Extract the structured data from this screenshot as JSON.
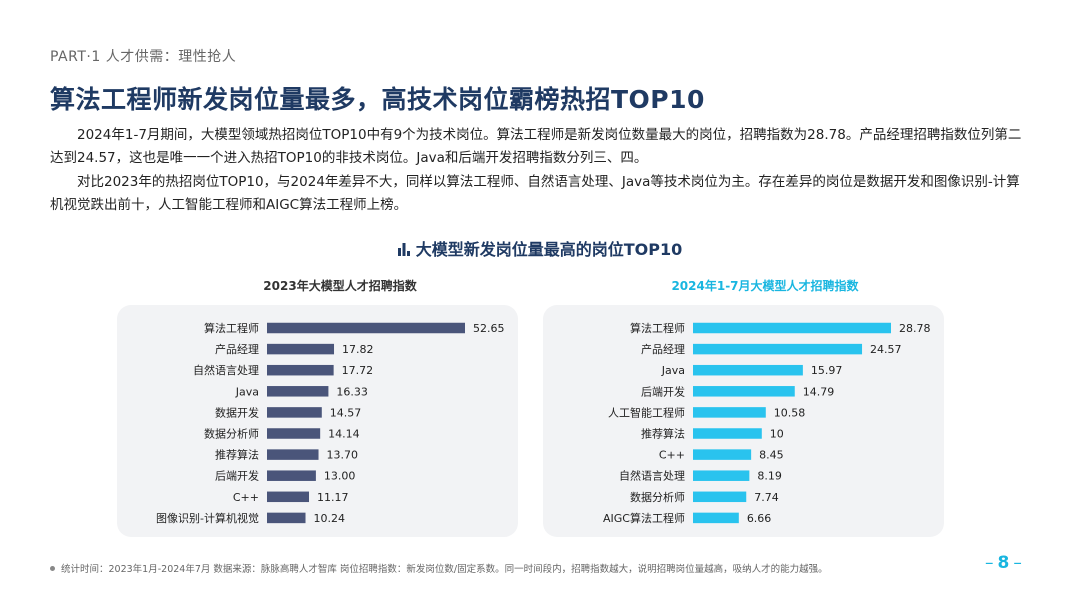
{
  "header": {
    "part": "PART·1  人才供需：理性抢人",
    "title": "算法工程师新发岗位量最多，高技术岗位霸榜热招TOP10"
  },
  "body": {
    "paragraph1": "2024年1-7月期间，大模型领域热招岗位TOP10中有9个为技术岗位。算法工程师是新发岗位数量最大的岗位，招聘指数为28.78。产品经理招聘指数位列第二达到24.57，这也是唯一一个进入热招TOP10的非技术岗位。Java和后端开发招聘指数分列三、四。",
    "paragraph2": "对比2023年的热招岗位TOP10，与2024年差异不大，同样以算法工程师、自然语言处理、Java等技术岗位为主。存在差异的岗位是数据开发和图像识别-计算机视觉跌出前十，人工智能工程师和AIGC算法工程师上榜。"
  },
  "figure": {
    "title": "大模型新发岗位量最高的岗位TOP10"
  },
  "colors": {
    "left_bar": "#4a557a",
    "right_bar": "#29c3ee",
    "accent": "#19b6e0",
    "title": "#1f3a63"
  },
  "chart_data": [
    {
      "type": "bar",
      "orientation": "horizontal",
      "title": "2023年大模型人才招聘指数",
      "categories": [
        "算法工程师",
        "产品经理",
        "自然语言处理",
        "Java",
        "数据开发",
        "数据分析师",
        "推荐算法",
        "后端开发",
        "C++",
        "图像识别-计算机视觉"
      ],
      "values": [
        52.65,
        17.82,
        17.72,
        16.33,
        14.57,
        14.14,
        13.7,
        13.0,
        11.17,
        10.24
      ],
      "value_labels": [
        "52.65",
        "17.82",
        "17.72",
        "16.33",
        "14.57",
        "14.14",
        "13.70",
        "13.00",
        "11.17",
        "10.24"
      ],
      "xlim": [
        0,
        52.65
      ]
    },
    {
      "type": "bar",
      "orientation": "horizontal",
      "title": "2024年1-7月大模型人才招聘指数",
      "categories": [
        "算法工程师",
        "产品经理",
        "Java",
        "后端开发",
        "人工智能工程师",
        "推荐算法",
        "C++",
        "自然语言处理",
        "数据分析师",
        "AIGC算法工程师"
      ],
      "values": [
        28.78,
        24.57,
        15.97,
        14.79,
        10.58,
        10,
        8.45,
        8.19,
        7.74,
        6.66
      ],
      "value_labels": [
        "28.78",
        "24.57",
        "15.97",
        "14.79",
        "10.58",
        "10",
        "8.45",
        "8.19",
        "7.74",
        "6.66"
      ],
      "xlim": [
        0,
        28.78
      ]
    }
  ],
  "footer": {
    "note": "统计时间：2023年1月-2024年7月   数据来源：脉脉高聘人才智库   岗位招聘指数：新发岗位数/固定系数。同一时间段内，招聘指数越大，说明招聘岗位量越高，吸纳人才的能力越强。",
    "page_number": "8"
  }
}
